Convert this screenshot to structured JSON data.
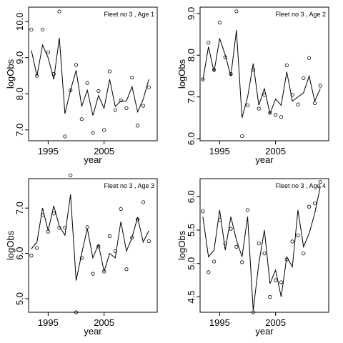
{
  "chart_data": [
    {
      "type": "line",
      "title": "Fleet no 3 , Age 1",
      "xlabel": "year",
      "ylabel": "logObs",
      "xlim": [
        1991.5,
        2014.5
      ],
      "ylim": [
        6.7,
        10.4
      ],
      "xticks": [
        1995,
        2005
      ],
      "xtick_labels": [
        "1995",
        "2005"
      ],
      "yticks": [
        7,
        8,
        9,
        10
      ],
      "ytick_labels": [
        "7.0",
        "8.0",
        "9.0",
        "10.0"
      ],
      "x": [
        1992,
        1993,
        1994,
        1995,
        1996,
        1997,
        1998,
        1999,
        2000,
        2001,
        2002,
        2003,
        2004,
        2005,
        2006,
        2007,
        2008,
        2009,
        2010,
        2011,
        2012,
        2013
      ],
      "series": [
        {
          "values": [
            9.2,
            8.5,
            9.35,
            9.0,
            8.4,
            9.55,
            7.45,
            8.1,
            8.65,
            7.65,
            8.1,
            7.4,
            7.95,
            7.6,
            8.4,
            7.65,
            7.8,
            7.8,
            8.2,
            7.5,
            7.85,
            8.4
          ]
        },
        {
          "values": [
            9.78,
            8.5,
            9.78,
            9.15,
            8.55,
            10.28,
            6.82,
            8.1,
            8.8,
            7.3,
            8.3,
            6.92,
            8.08,
            7.0,
            8.62,
            7.55,
            7.82,
            7.6,
            8.45,
            7.12,
            7.67,
            8.18
          ]
        }
      ]
    },
    {
      "type": "line",
      "title": "Fleet no 3 , Age 2",
      "xlabel": "year",
      "ylabel": "logObs",
      "xlim": [
        1991.5,
        2014.5
      ],
      "ylim": [
        5.95,
        9.15
      ],
      "xticks": [
        1995,
        2005
      ],
      "xtick_labels": [
        "1995",
        "2005"
      ],
      "yticks": [
        6,
        7,
        8,
        9
      ],
      "ytick_labels": [
        "6.0",
        "7.0",
        "8.0",
        "9.0"
      ],
      "x": [
        1992,
        1993,
        1994,
        1995,
        1996,
        1997,
        1998,
        1999,
        2000,
        2001,
        2002,
        2003,
        2004,
        2005,
        2006,
        2007,
        2008,
        2009,
        2010,
        2011,
        2012,
        2013
      ],
      "series": [
        {
          "values": [
            7.4,
            8.2,
            7.6,
            8.4,
            8.0,
            7.5,
            8.6,
            6.5,
            7.0,
            7.8,
            6.8,
            7.2,
            6.6,
            6.95,
            6.8,
            7.6,
            6.9,
            7.0,
            7.1,
            7.5,
            6.9,
            7.2
          ]
        },
        {
          "values": [
            7.42,
            8.3,
            7.65,
            8.78,
            7.95,
            7.55,
            9.05,
            6.06,
            6.8,
            7.65,
            6.72,
            7.05,
            6.62,
            6.57,
            6.52,
            7.76,
            7.05,
            6.82,
            7.45,
            7.93,
            6.85,
            7.27
          ]
        }
      ]
    },
    {
      "type": "line",
      "title": "Fleet no 3 , Age 3",
      "xlabel": "year",
      "ylabel": "logObs",
      "xlim": [
        1991.5,
        2014.5
      ],
      "ylim": [
        4.7,
        7.65
      ],
      "xticks": [
        1995,
        2005
      ],
      "xtick_labels": [
        "1995",
        "2005"
      ],
      "yticks": [
        5,
        6,
        7
      ],
      "ytick_labels": [
        "5.0",
        "6.0",
        "7.0"
      ],
      "x": [
        1992,
        1993,
        1994,
        1995,
        1996,
        1997,
        1998,
        1999,
        2000,
        2001,
        2002,
        2003,
        2004,
        2005,
        2006,
        2007,
        2008,
        2009,
        2010,
        2011,
        2012,
        2013
      ],
      "series": [
        {
          "values": [
            6.1,
            6.25,
            7.0,
            6.5,
            7.05,
            6.6,
            6.4,
            7.3,
            5.4,
            6.0,
            6.55,
            5.9,
            6.2,
            5.6,
            6.0,
            5.9,
            6.7,
            6.05,
            6.35,
            6.8,
            6.25,
            6.5
          ]
        },
        {
          "values": [
            5.95,
            6.12,
            6.85,
            6.48,
            6.88,
            6.56,
            6.57,
            7.72,
            4.7,
            5.9,
            6.58,
            5.55,
            6.15,
            5.6,
            6.38,
            6.05,
            6.98,
            5.65,
            6.35,
            6.75,
            7.13,
            6.27
          ]
        }
      ]
    },
    {
      "type": "line",
      "title": "Fleet no 3 , Age 4",
      "xlabel": "year",
      "ylabel": "logObs",
      "xlim": [
        1991.5,
        2014.5
      ],
      "ylim": [
        4.27,
        6.27
      ],
      "xticks": [
        1995,
        2005
      ],
      "xtick_labels": [
        "1995",
        "2005"
      ],
      "yticks": [
        4.5,
        5.0,
        5.5,
        6.0
      ],
      "ytick_labels": [
        "4.5",
        "5.0",
        "5.5",
        "6.0"
      ],
      "x": [
        1992,
        1993,
        1994,
        1995,
        1996,
        1997,
        1998,
        1999,
        2000,
        2001,
        2002,
        2003,
        2004,
        2005,
        2006,
        2007,
        2008,
        2009,
        2010,
        2011,
        2012,
        2013
      ],
      "series": [
        {
          "values": [
            5.7,
            5.1,
            5.2,
            5.8,
            5.2,
            5.7,
            5.35,
            5.1,
            5.7,
            4.3,
            5.0,
            5.5,
            4.7,
            4.9,
            4.5,
            5.1,
            4.95,
            5.8,
            5.25,
            5.45,
            5.75,
            6.15
          ]
        },
        {
          "values": [
            5.78,
            4.87,
            5.03,
            5.65,
            5.3,
            5.52,
            5.25,
            5.02,
            5.8,
            4.27,
            5.3,
            5.15,
            4.5,
            4.75,
            4.72,
            5.06,
            5.33,
            5.42,
            5.15,
            5.85,
            5.9,
            6.22
          ]
        }
      ]
    }
  ]
}
